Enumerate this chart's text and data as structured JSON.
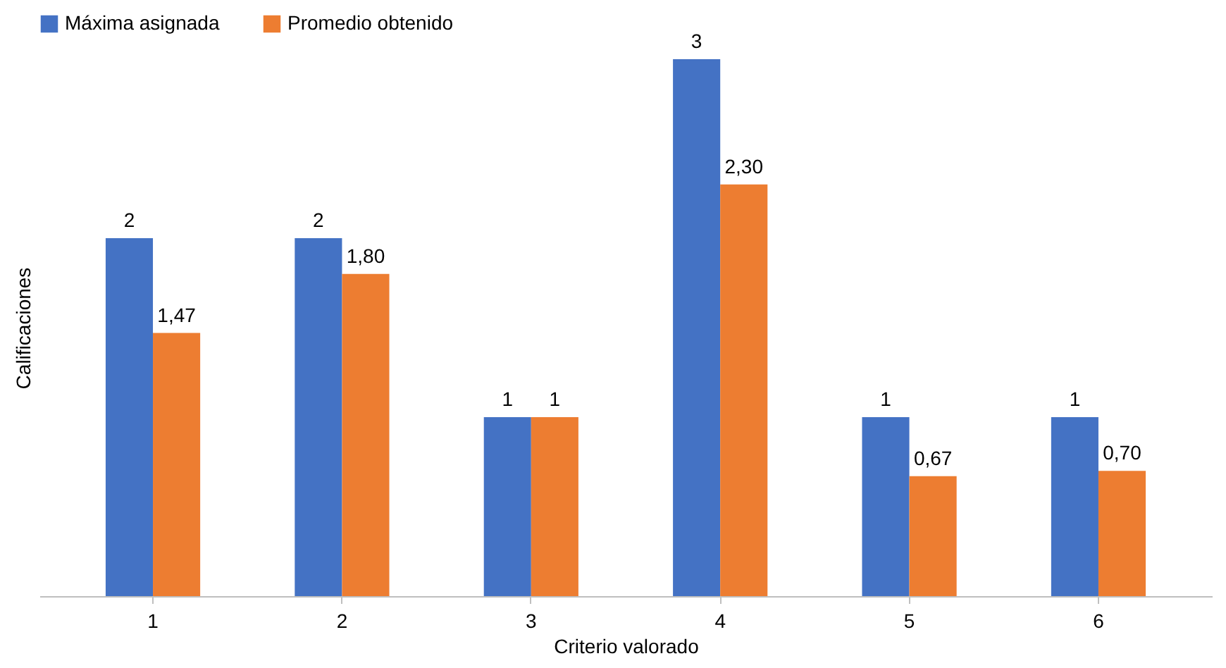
{
  "chart_data": {
    "type": "bar",
    "xlabel": "Criterio valorado",
    "ylabel": "Calificaciones",
    "categories": [
      "1",
      "2",
      "3",
      "4",
      "5",
      "6"
    ],
    "series": [
      {
        "name": "Máxima asignada",
        "color": "#4472c4",
        "values": [
          2,
          2,
          1,
          3,
          1,
          1
        ],
        "value_labels": [
          "2",
          "2",
          "1",
          "3",
          "1",
          "1"
        ]
      },
      {
        "name": "Promedio obtenido",
        "color": "#ed7d31",
        "values": [
          1.47,
          1.8,
          1,
          2.3,
          0.67,
          0.7
        ],
        "value_labels": [
          "1,47",
          "1,80",
          "1",
          "2,30",
          "0,67",
          "0,70"
        ]
      }
    ],
    "legend": "top",
    "grid": false,
    "tick_labels": "x"
  }
}
